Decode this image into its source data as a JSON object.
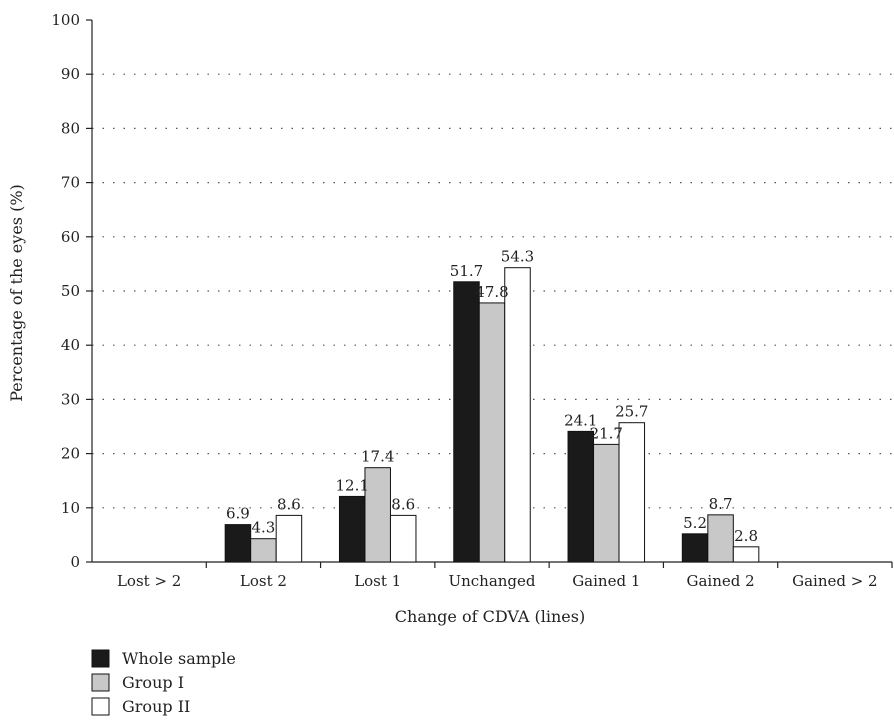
{
  "chart_data": {
    "type": "bar",
    "title": "",
    "xlabel": "Change of CDVA (lines)",
    "ylabel": "Percentage of the eyes (%)",
    "ylim": [
      0,
      100
    ],
    "yticks": [
      0,
      10,
      20,
      30,
      40,
      50,
      60,
      70,
      80,
      90,
      100
    ],
    "grid": true,
    "legend_position": "bottom-left",
    "categories": [
      "Lost > 2",
      "Lost 2",
      "Lost 1",
      "Unchanged",
      "Gained 1",
      "Gained 2",
      "Gained > 2"
    ],
    "series": [
      {
        "name": "Whole sample",
        "color": "#1a1a1a",
        "values": [
          0,
          6.9,
          12.1,
          51.7,
          24.1,
          5.2,
          0
        ],
        "labels": [
          "",
          "6.9",
          "12.1",
          "51.7",
          "24.1",
          "5.2",
          ""
        ]
      },
      {
        "name": "Group I",
        "color": "#c8c8c8",
        "values": [
          0,
          4.3,
          17.4,
          47.8,
          21.7,
          8.7,
          0
        ],
        "labels": [
          "",
          "4.3",
          "17.4",
          "47.8",
          "21.7",
          "8.7",
          ""
        ]
      },
      {
        "name": "Group II",
        "color": "#ffffff",
        "values": [
          0,
          8.6,
          8.6,
          54.3,
          25.7,
          2.8,
          0
        ],
        "labels": [
          "",
          "8.6",
          "8.6",
          "54.3",
          "25.7",
          "2.8",
          ""
        ]
      }
    ]
  }
}
